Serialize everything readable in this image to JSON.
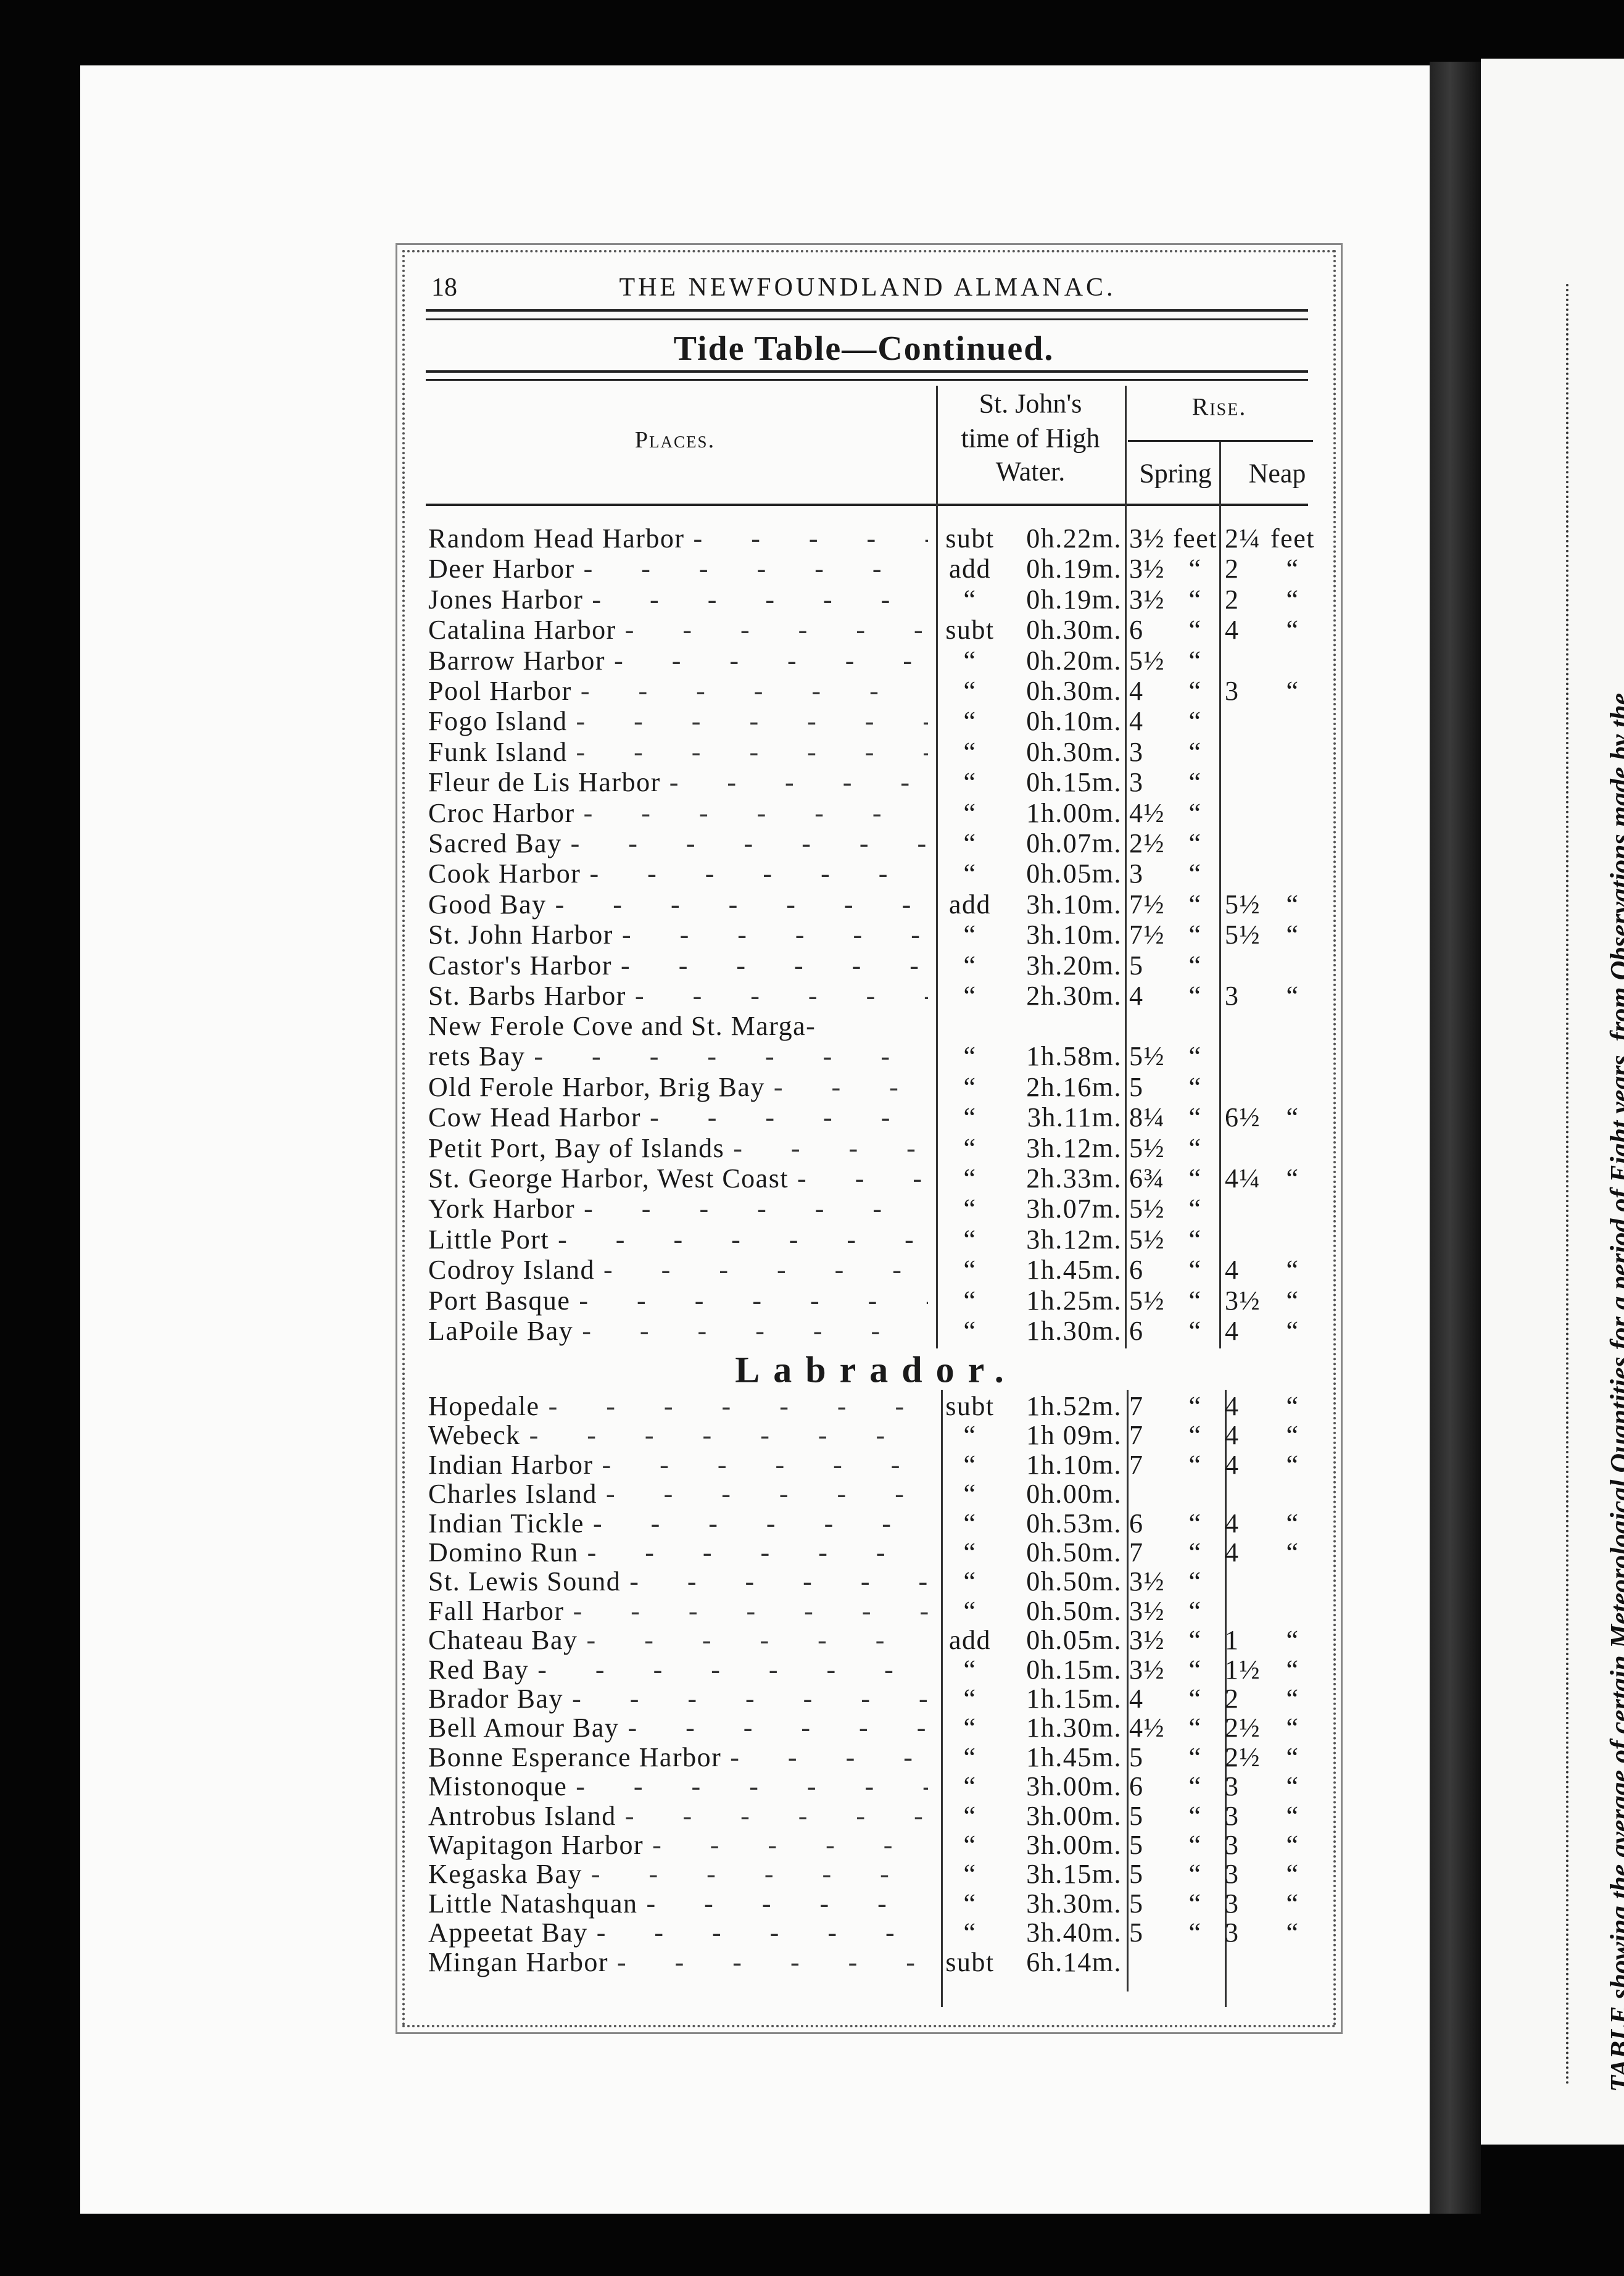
{
  "header": {
    "page_number": "18",
    "running_title": "THE NEWFOUNDLAND ALMANAC.",
    "table_title": "Tide Table—Continued."
  },
  "columns": {
    "places": "Places.",
    "time_line1": "St. John's",
    "time_line2": "time of High",
    "time_line3": "Water.",
    "rise": "Rise.",
    "spring": "Spring",
    "neap": "Neap"
  },
  "newfoundland_rows": [
    {
      "place": "Random Head Harbor",
      "sign": "subt",
      "time": "0h.22m.",
      "spring": "3½",
      "spring_unit": "feet",
      "neap": "2¼",
      "neap_unit": "feet"
    },
    {
      "place": "Deer Harbor",
      "sign": "add",
      "time": "0h.19m.",
      "spring": "3½",
      "spring_unit": "“",
      "neap": "2",
      "neap_unit": "“"
    },
    {
      "place": "Jones Harbor",
      "sign": "“",
      "time": "0h.19m.",
      "spring": "3½",
      "spring_unit": "“",
      "neap": "2",
      "neap_unit": "“"
    },
    {
      "place": "Catalina Harbor",
      "sign": "subt",
      "time": "0h.30m.",
      "spring": "6",
      "spring_unit": "“",
      "neap": "4",
      "neap_unit": "“"
    },
    {
      "place": "Barrow Harbor",
      "sign": "“",
      "time": "0h.20m.",
      "spring": "5½",
      "spring_unit": "“",
      "neap": "",
      "neap_unit": ""
    },
    {
      "place": "Pool Harbor",
      "sign": "“",
      "time": "0h.30m.",
      "spring": "4",
      "spring_unit": "“",
      "neap": "3",
      "neap_unit": "“"
    },
    {
      "place": "Fogo Island",
      "sign": "“",
      "time": "0h.10m.",
      "spring": "4",
      "spring_unit": "“",
      "neap": "",
      "neap_unit": ""
    },
    {
      "place": "Funk Island",
      "sign": "“",
      "time": "0h.30m.",
      "spring": "3",
      "spring_unit": "“",
      "neap": "",
      "neap_unit": ""
    },
    {
      "place": "Fleur de Lis Harbor",
      "sign": "“",
      "time": "0h.15m.",
      "spring": "3",
      "spring_unit": "“",
      "neap": "",
      "neap_unit": ""
    },
    {
      "place": "Croc Harbor",
      "sign": "“",
      "time": "1h.00m.",
      "spring": "4½",
      "spring_unit": "“",
      "neap": "",
      "neap_unit": ""
    },
    {
      "place": "Sacred Bay",
      "sign": "“",
      "time": "0h.07m.",
      "spring": "2½",
      "spring_unit": "“",
      "neap": "",
      "neap_unit": ""
    },
    {
      "place": "Cook Harbor",
      "sign": "“",
      "time": "0h.05m.",
      "spring": "3",
      "spring_unit": "“",
      "neap": "",
      "neap_unit": ""
    },
    {
      "place": "Good Bay",
      "sign": "add",
      "time": "3h.10m.",
      "spring": "7½",
      "spring_unit": "“",
      "neap": "5½",
      "neap_unit": "“"
    },
    {
      "place": "St. John Harbor",
      "sign": "“",
      "time": "3h.10m.",
      "spring": "7½",
      "spring_unit": "“",
      "neap": "5½",
      "neap_unit": "“"
    },
    {
      "place": "Castor's Harbor",
      "sign": "“",
      "time": "3h.20m.",
      "spring": "5",
      "spring_unit": "“",
      "neap": "",
      "neap_unit": ""
    },
    {
      "place": "St. Barbs Harbor",
      "sign": "“",
      "time": "2h.30m.",
      "spring": "4",
      "spring_unit": "“",
      "neap": "3",
      "neap_unit": "“"
    },
    {
      "place": "New Ferole Cove and St. Marga-",
      "place_line2": "rets Bay",
      "sign": "“",
      "time": "1h.58m.",
      "spring": "5½",
      "spring_unit": "“",
      "neap": "",
      "neap_unit": ""
    },
    {
      "place": "Old Ferole Harbor, Brig Bay",
      "sign": "“",
      "time": "2h.16m.",
      "spring": "5",
      "spring_unit": "“",
      "neap": "",
      "neap_unit": ""
    },
    {
      "place": "Cow Head Harbor",
      "sign": "“",
      "time": "3h.11m.",
      "spring": "8¼",
      "spring_unit": "“",
      "neap": "6½",
      "neap_unit": "“"
    },
    {
      "place": "Petit Port, Bay of Islands",
      "sign": "“",
      "time": "3h.12m.",
      "spring": "5½",
      "spring_unit": "“",
      "neap": "",
      "neap_unit": ""
    },
    {
      "place": "St. George Harbor, West Coast",
      "sign": "“",
      "time": "2h.33m.",
      "spring": "6¾",
      "spring_unit": "“",
      "neap": "4¼",
      "neap_unit": "“"
    },
    {
      "place": "York Harbor",
      "sign": "“",
      "time": "3h.07m.",
      "spring": "5½",
      "spring_unit": "“",
      "neap": "",
      "neap_unit": ""
    },
    {
      "place": "Little Port",
      "sign": "“",
      "time": "3h.12m.",
      "spring": "5½",
      "spring_unit": "“",
      "neap": "",
      "neap_unit": ""
    },
    {
      "place": "Codroy Island",
      "sign": "“",
      "time": "1h.45m.",
      "spring": "6",
      "spring_unit": "“",
      "neap": "4",
      "neap_unit": "“"
    },
    {
      "place": "Port Basque",
      "sign": "“",
      "time": "1h.25m.",
      "spring": "5½",
      "spring_unit": "“",
      "neap": "3½",
      "neap_unit": "“"
    },
    {
      "place": "LaPoile Bay",
      "sign": "“",
      "time": "1h.30m.",
      "spring": "6",
      "spring_unit": "“",
      "neap": "4",
      "neap_unit": "“"
    }
  ],
  "labrador_heading": "Labrador.",
  "labrador_rows": [
    {
      "place": "Hopedale",
      "sign": "subt",
      "time": "1h.52m.",
      "spring": "7",
      "spring_unit": "“",
      "neap": "4",
      "neap_unit": "“"
    },
    {
      "place": "Webeck",
      "sign": "“",
      "time": "1h 09m.",
      "spring": "7",
      "spring_unit": "“",
      "neap": "4",
      "neap_unit": "“"
    },
    {
      "place": "Indian Harbor",
      "sign": "“",
      "time": "1h.10m.",
      "spring": "7",
      "spring_unit": "“",
      "neap": "4",
      "neap_unit": "“"
    },
    {
      "place": "Charles Island",
      "sign": "“",
      "time": "0h.00m.",
      "spring": "",
      "spring_unit": "",
      "neap": "",
      "neap_unit": ""
    },
    {
      "place": "Indian Tickle",
      "sign": "“",
      "time": "0h.53m.",
      "spring": "6",
      "spring_unit": "“",
      "neap": "4",
      "neap_unit": "“"
    },
    {
      "place": "Domino Run",
      "sign": "“",
      "time": "0h.50m.",
      "spring": "7",
      "spring_unit": "“",
      "neap": "4",
      "neap_unit": "“"
    },
    {
      "place": "St. Lewis Sound",
      "sign": "“",
      "time": "0h.50m.",
      "spring": "3½",
      "spring_unit": "“",
      "neap": "",
      "neap_unit": ""
    },
    {
      "place": "Fall Harbor",
      "sign": "“",
      "time": "0h.50m.",
      "spring": "3½",
      "spring_unit": "“",
      "neap": "",
      "neap_unit": ""
    },
    {
      "place": "Chateau Bay",
      "sign": "add",
      "time": "0h.05m.",
      "spring": "3½",
      "spring_unit": "“",
      "neap": "1",
      "neap_unit": "“"
    },
    {
      "place": "Red Bay",
      "sign": "“",
      "time": "0h.15m.",
      "spring": "3½",
      "spring_unit": "“",
      "neap": "1½",
      "neap_unit": "“"
    },
    {
      "place": "Brador Bay",
      "sign": "“",
      "time": "1h.15m.",
      "spring": "4",
      "spring_unit": "“",
      "neap": "2",
      "neap_unit": "“"
    },
    {
      "place": "Bell Amour Bay",
      "sign": "“",
      "time": "1h.30m.",
      "spring": "4½",
      "spring_unit": "“",
      "neap": "2½",
      "neap_unit": "“"
    },
    {
      "place": "Bonne Esperance Harbor",
      "sign": "“",
      "time": "1h.45m.",
      "spring": "5",
      "spring_unit": "“",
      "neap": "2½",
      "neap_unit": "“"
    },
    {
      "place": "Mistonoque",
      "sign": "“",
      "time": "3h.00m.",
      "spring": "6",
      "spring_unit": "“",
      "neap": "3",
      "neap_unit": "“"
    },
    {
      "place": "Antrobus Island",
      "sign": "“",
      "time": "3h.00m.",
      "spring": "5",
      "spring_unit": "“",
      "neap": "3",
      "neap_unit": "“"
    },
    {
      "place": "Wapitagon Harbor",
      "sign": "“",
      "time": "3h.00m.",
      "spring": "5",
      "spring_unit": "“",
      "neap": "3",
      "neap_unit": "“"
    },
    {
      "place": "Kegaska Bay",
      "sign": "“",
      "time": "3h.15m.",
      "spring": "5",
      "spring_unit": "“",
      "neap": "3",
      "neap_unit": "“"
    },
    {
      "place": "Little Natashquan",
      "sign": "“",
      "time": "3h.30m.",
      "spring": "5",
      "spring_unit": "“",
      "neap": "3",
      "neap_unit": "“"
    },
    {
      "place": "Appeetat Bay",
      "sign": "“",
      "time": "3h.40m.",
      "spring": "5",
      "spring_unit": "“",
      "neap": "3",
      "neap_unit": "“"
    },
    {
      "place": "Mingan Harbor",
      "sign": "subt",
      "time": "6h.14m.",
      "spring": "",
      "spring_unit": "",
      "neap": "",
      "neap_unit": ""
    }
  ],
  "facing_page": {
    "rotated_caption": "TABLE showing the average of certain Meteorological Quantities for a period of Eight years, from Observations made by the"
  }
}
